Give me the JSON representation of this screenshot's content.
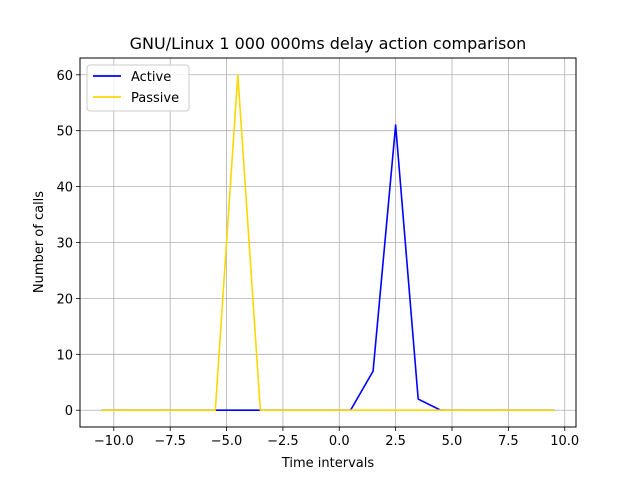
{
  "chart_data": {
    "type": "line",
    "title": "GNU/Linux 1 000 000ms delay action comparison",
    "xlabel": "Time intervals",
    "ylabel": "Number of calls",
    "xlim": [
      -11.5,
      10.5
    ],
    "ylim": [
      -3,
      63
    ],
    "xticks": [
      -10,
      -7.5,
      -5,
      -2.5,
      0,
      2.5,
      5,
      7.5,
      10
    ],
    "xtick_labels": [
      "−10.0",
      "−7.5",
      "−5.0",
      "−2.5",
      "0.0",
      "2.5",
      "5.0",
      "7.5",
      "10.0"
    ],
    "yticks": [
      0,
      10,
      20,
      30,
      40,
      50,
      60
    ],
    "ytick_labels": [
      "0",
      "10",
      "20",
      "30",
      "40",
      "50",
      "60"
    ],
    "grid": true,
    "legend_position": "upper-left",
    "series": [
      {
        "name": "Active",
        "color": "#0000ff",
        "x": [
          -10.5,
          -9.5,
          -8.5,
          -7.5,
          -6.5,
          -5.5,
          -4.5,
          -3.5,
          -2.5,
          -1.5,
          -0.5,
          0.5,
          1.5,
          2.5,
          3.5,
          4.5,
          5.5,
          6.5,
          7.5,
          8.5,
          9.5
        ],
        "y": [
          0,
          0,
          0,
          0,
          0,
          0,
          0,
          0,
          0,
          0,
          0,
          0,
          7,
          51,
          2,
          0,
          0,
          0,
          0,
          0,
          0
        ]
      },
      {
        "name": "Passive",
        "color": "#ffd700",
        "x": [
          -10.5,
          -9.5,
          -8.5,
          -7.5,
          -6.5,
          -5.5,
          -4.5,
          -3.5,
          -2.5,
          -1.5,
          -0.5,
          0.5,
          1.5,
          2.5,
          3.5,
          4.5,
          5.5,
          6.5,
          7.5,
          8.5,
          9.5
        ],
        "y": [
          0,
          0,
          0,
          0,
          0,
          0,
          60,
          0,
          0,
          0,
          0,
          0,
          0,
          0,
          0,
          0,
          0,
          0,
          0,
          0,
          0
        ]
      }
    ]
  }
}
